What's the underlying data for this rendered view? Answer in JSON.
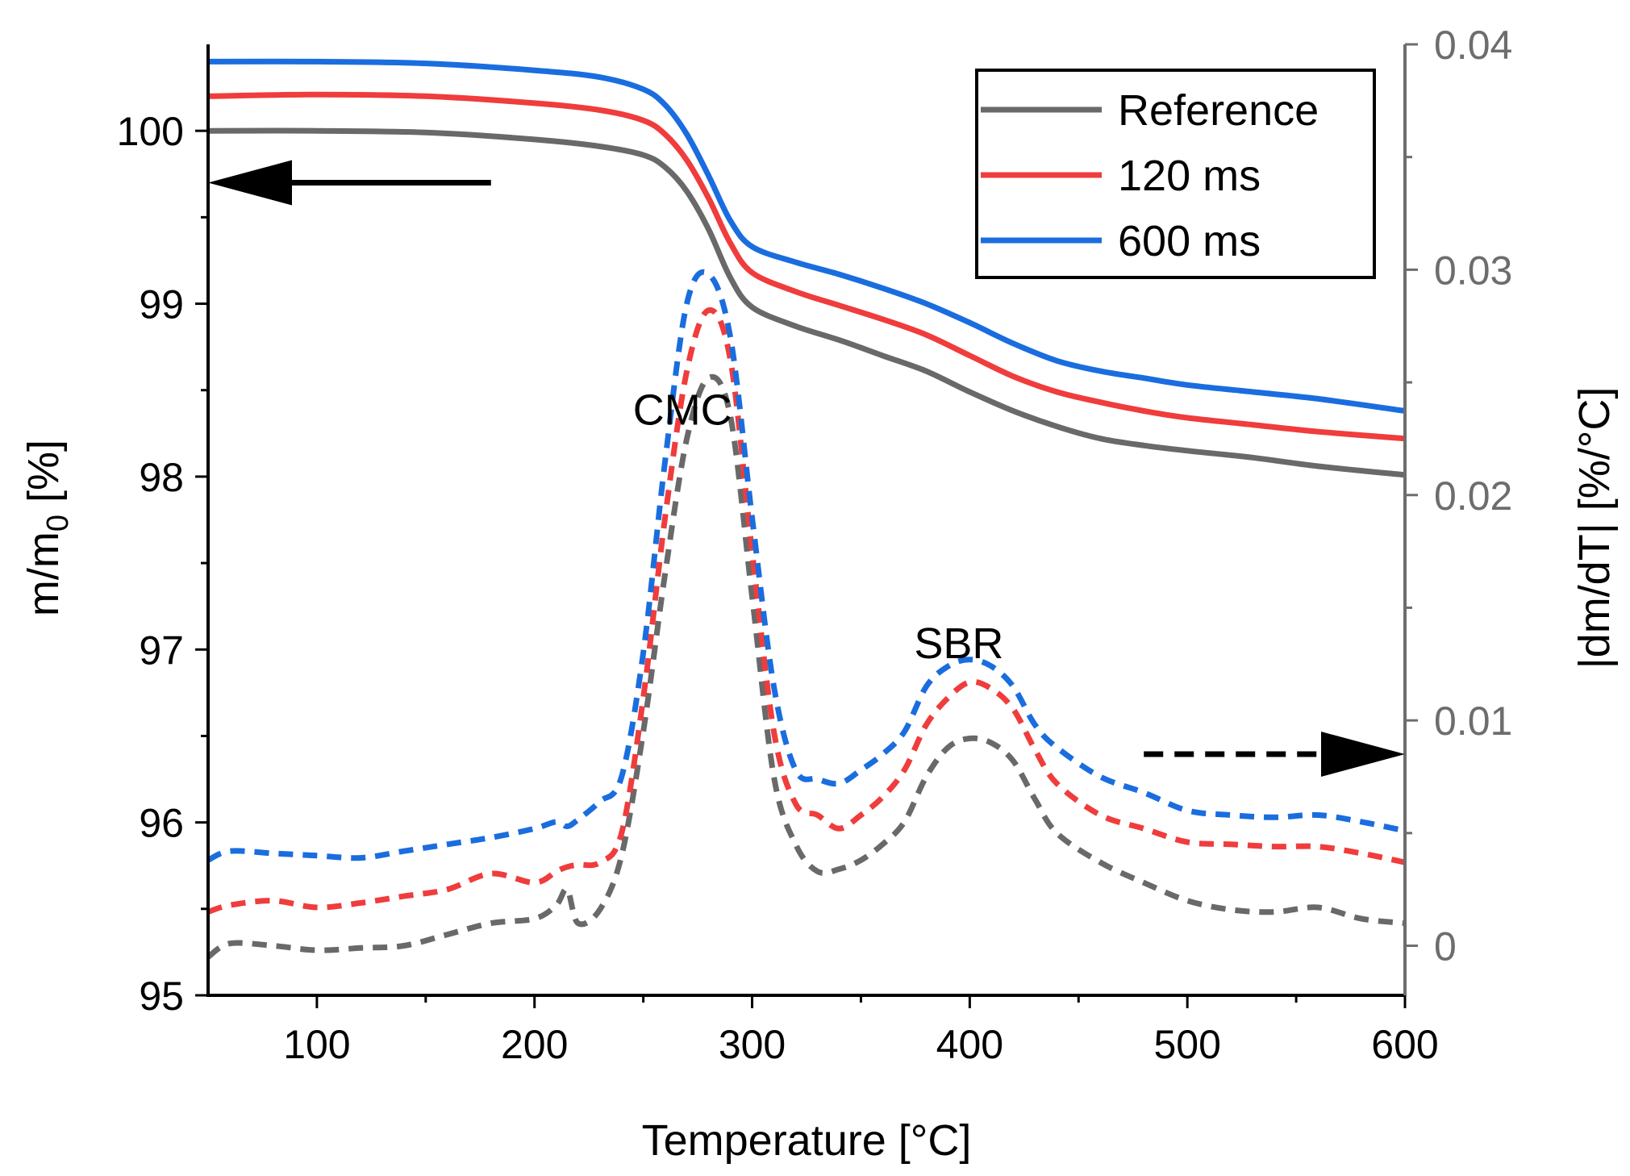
{
  "chart_data": {
    "type": "line",
    "x_axis": {
      "label": "Temperature [°C]",
      "range": [
        50,
        600
      ],
      "ticks": [
        100,
        200,
        300,
        400,
        500,
        600
      ],
      "tick_labels": [
        "100",
        "200",
        "300",
        "400",
        "500",
        "600"
      ]
    },
    "y_left": {
      "label_main": "m/m",
      "label_sub": "0",
      "label_unit": " [%]",
      "range": [
        95,
        100.5
      ],
      "ticks": [
        95,
        96,
        97,
        98,
        99,
        100
      ],
      "tick_labels": [
        "95",
        "96",
        "97",
        "98",
        "99",
        "100"
      ]
    },
    "y_right": {
      "label": "|dm/dT| [%/°C]",
      "range": [
        -0.0022,
        0.04
      ],
      "ticks": [
        0,
        0.01,
        0.02,
        0.03,
        0.04
      ],
      "tick_labels": [
        "0",
        "0.01",
        "0.02",
        "0.03",
        "0.04"
      ]
    },
    "legend": {
      "position": "top-right",
      "entries": [
        {
          "name": "Reference",
          "color": "#696969"
        },
        {
          "name": "120 ms",
          "color": "#f03c3c"
        },
        {
          "name": "600 ms",
          "color": "#1a6ddf"
        }
      ]
    },
    "annotations": [
      {
        "text": "CMC",
        "x": 268,
        "axis_value": 98.3
      },
      {
        "text": "SBR",
        "x": 395,
        "axis_value": 96.95
      }
    ],
    "arrows": [
      {
        "style": "solid",
        "direction": "left",
        "axis": "left",
        "x_from": 180,
        "x_to": 50,
        "y": 99.7
      },
      {
        "style": "dashed",
        "direction": "right",
        "axis": "right",
        "x_from": 480,
        "x_to": 600,
        "y": 0.0085
      }
    ],
    "mass_series": [
      {
        "name": "Reference",
        "color": "#696969",
        "axis": "left",
        "x": [
          50,
          100,
          150,
          200,
          230,
          250,
          260,
          270,
          280,
          290,
          300,
          320,
          340,
          360,
          380,
          400,
          420,
          440,
          460,
          480,
          500,
          530,
          560,
          600
        ],
        "y": [
          100.0,
          100.0,
          99.99,
          99.95,
          99.91,
          99.86,
          99.79,
          99.65,
          99.43,
          99.15,
          98.98,
          98.87,
          98.79,
          98.7,
          98.61,
          98.49,
          98.38,
          98.29,
          98.22,
          98.18,
          98.15,
          98.11,
          98.06,
          98.01
        ]
      },
      {
        "name": "120 ms",
        "color": "#f03c3c",
        "axis": "left",
        "x": [
          50,
          100,
          150,
          200,
          230,
          250,
          260,
          270,
          280,
          290,
          300,
          320,
          340,
          360,
          380,
          400,
          420,
          440,
          460,
          480,
          500,
          530,
          560,
          600
        ],
        "y": [
          100.2,
          100.21,
          100.2,
          100.16,
          100.12,
          100.06,
          99.98,
          99.83,
          99.61,
          99.35,
          99.18,
          99.07,
          98.99,
          98.91,
          98.82,
          98.7,
          98.58,
          98.49,
          98.43,
          98.38,
          98.34,
          98.3,
          98.26,
          98.22
        ]
      },
      {
        "name": "600 ms",
        "color": "#1a6ddf",
        "axis": "left",
        "x": [
          50,
          100,
          150,
          200,
          230,
          250,
          260,
          270,
          280,
          290,
          300,
          320,
          340,
          360,
          380,
          400,
          420,
          440,
          460,
          480,
          500,
          530,
          560,
          600
        ],
        "y": [
          100.4,
          100.4,
          100.39,
          100.35,
          100.31,
          100.24,
          100.15,
          99.98,
          99.74,
          99.48,
          99.33,
          99.24,
          99.17,
          99.09,
          99.0,
          98.89,
          98.77,
          98.67,
          98.61,
          98.57,
          98.53,
          98.49,
          98.45,
          98.38
        ]
      }
    ],
    "derivative_series": [
      {
        "name": "Reference",
        "color": "#696969",
        "axis": "right",
        "x": [
          50,
          60,
          80,
          100,
          120,
          140,
          160,
          180,
          200,
          210,
          215,
          220,
          230,
          240,
          250,
          260,
          270,
          280,
          290,
          300,
          310,
          320,
          330,
          340,
          350,
          360,
          370,
          380,
          390,
          400,
          410,
          420,
          430,
          440,
          460,
          480,
          500,
          520,
          540,
          560,
          580,
          600
        ],
        "y": [
          -0.0005,
          0.0001,
          0.0,
          -0.0002,
          -0.0001,
          0.0,
          0.0005,
          0.001,
          0.0012,
          0.0018,
          0.0025,
          0.001,
          0.0016,
          0.004,
          0.0095,
          0.0165,
          0.0225,
          0.0252,
          0.0235,
          0.0155,
          0.0075,
          0.0045,
          0.0033,
          0.0034,
          0.0038,
          0.0045,
          0.0055,
          0.0075,
          0.0088,
          0.0092,
          0.009,
          0.0082,
          0.0065,
          0.005,
          0.0037,
          0.0028,
          0.002,
          0.0016,
          0.0015,
          0.0017,
          0.0012,
          0.001
        ]
      },
      {
        "name": "120 ms",
        "color": "#f03c3c",
        "axis": "right",
        "x": [
          50,
          60,
          80,
          100,
          120,
          140,
          160,
          180,
          200,
          210,
          215,
          220,
          230,
          240,
          250,
          260,
          270,
          280,
          290,
          300,
          310,
          320,
          330,
          340,
          350,
          360,
          370,
          380,
          390,
          400,
          410,
          420,
          430,
          440,
          460,
          480,
          500,
          520,
          540,
          560,
          580,
          600
        ],
        "y": [
          0.0015,
          0.0018,
          0.002,
          0.0017,
          0.0019,
          0.0022,
          0.0025,
          0.0032,
          0.0028,
          0.0033,
          0.0035,
          0.0036,
          0.0037,
          0.005,
          0.011,
          0.019,
          0.0255,
          0.0282,
          0.026,
          0.0175,
          0.0095,
          0.0063,
          0.0058,
          0.0052,
          0.0058,
          0.0066,
          0.0078,
          0.0098,
          0.011,
          0.0117,
          0.0114,
          0.0105,
          0.0087,
          0.0072,
          0.0058,
          0.0052,
          0.0046,
          0.0045,
          0.0044,
          0.0044,
          0.0041,
          0.0037
        ]
      },
      {
        "name": "600 ms",
        "color": "#1a6ddf",
        "axis": "right",
        "x": [
          50,
          60,
          80,
          100,
          120,
          140,
          160,
          180,
          200,
          210,
          215,
          220,
          230,
          240,
          250,
          260,
          270,
          280,
          290,
          300,
          310,
          320,
          330,
          340,
          350,
          360,
          370,
          380,
          390,
          400,
          410,
          420,
          430,
          440,
          460,
          480,
          500,
          520,
          540,
          560,
          580,
          600
        ],
        "y": [
          0.0038,
          0.0042,
          0.0041,
          0.004,
          0.0039,
          0.0042,
          0.0045,
          0.0048,
          0.0052,
          0.0055,
          0.0053,
          0.0056,
          0.0064,
          0.0075,
          0.013,
          0.0215,
          0.0285,
          0.0298,
          0.027,
          0.019,
          0.0115,
          0.0078,
          0.0074,
          0.0072,
          0.0078,
          0.0085,
          0.0095,
          0.0115,
          0.0124,
          0.0127,
          0.0124,
          0.0115,
          0.0098,
          0.0088,
          0.0075,
          0.0068,
          0.006,
          0.0058,
          0.0057,
          0.0058,
          0.0055,
          0.0051
        ]
      }
    ]
  }
}
